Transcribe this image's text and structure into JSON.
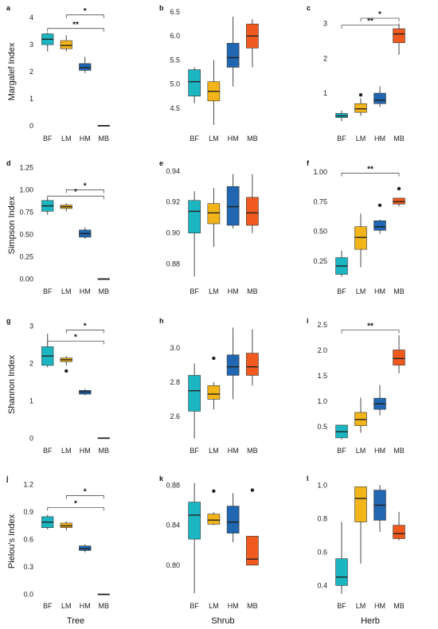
{
  "colors": {
    "BF": "#1BB6C1",
    "LM": "#F2B418",
    "HM": "#2066B0",
    "MB": "#F05A1E"
  },
  "row_labels": [
    "Margalef Index",
    "Simpson Index",
    "Shannon Index",
    "Pielou's Index"
  ],
  "col_labels": [
    "Tree",
    "Shrub",
    "Herb"
  ],
  "chart_data": [
    {
      "type": "box",
      "panel": "a",
      "row": 0,
      "col": 0,
      "categories": [
        "BF",
        "LM",
        "HM",
        "MB"
      ],
      "ylim": [
        -0.15,
        4.3
      ],
      "yticks": [
        0,
        1,
        2,
        3,
        4
      ],
      "ytick_labels": [
        "0",
        "1",
        "2",
        "3",
        "4"
      ],
      "boxes": [
        {
          "min": 2.75,
          "q1": 3.0,
          "median": 3.2,
          "q3": 3.4,
          "max": 3.45,
          "outliers": []
        },
        {
          "min": 2.75,
          "q1": 2.85,
          "median": 2.97,
          "q3": 3.15,
          "max": 3.35,
          "outliers": []
        },
        {
          "min": 1.95,
          "q1": 2.05,
          "median": 2.15,
          "q3": 2.3,
          "max": 2.55,
          "outliers": []
        },
        {
          "min": 0,
          "q1": 0,
          "median": 0,
          "q3": 0,
          "max": 0,
          "outliers": []
        }
      ],
      "sig": [
        {
          "from": 1,
          "to": 3,
          "y": 4.1,
          "label": "*"
        },
        {
          "from": 0,
          "to": 3,
          "y": 3.6,
          "label": "**"
        }
      ]
    },
    {
      "type": "box",
      "panel": "b",
      "row": 0,
      "col": 1,
      "categories": [
        "BF",
        "LM",
        "HM",
        "MB"
      ],
      "ylim": [
        4.05,
        6.55
      ],
      "yticks": [
        4.5,
        5.0,
        5.5,
        6.0,
        6.5
      ],
      "ytick_labels": [
        "4.5",
        "5.0",
        "5.5",
        "6.0",
        "6.5"
      ],
      "boxes": [
        {
          "min": 4.6,
          "q1": 4.75,
          "median": 5.05,
          "q3": 5.3,
          "max": 5.35,
          "outliers": []
        },
        {
          "min": 4.15,
          "q1": 4.65,
          "median": 4.85,
          "q3": 5.05,
          "max": 5.5,
          "outliers": []
        },
        {
          "min": 4.95,
          "q1": 5.35,
          "median": 5.55,
          "q3": 5.85,
          "max": 6.4,
          "outliers": []
        },
        {
          "min": 5.35,
          "q1": 5.75,
          "median": 6.0,
          "q3": 6.25,
          "max": 6.35,
          "outliers": []
        }
      ],
      "sig": []
    },
    {
      "type": "box",
      "panel": "c",
      "row": 0,
      "col": 2,
      "categories": [
        "BF",
        "LM",
        "HM",
        "MB"
      ],
      "ylim": [
        -0.05,
        3.4
      ],
      "yticks": [
        1,
        2,
        3
      ],
      "ytick_labels": [
        "1",
        "2",
        "3"
      ],
      "boxes": [
        {
          "min": 0.2,
          "q1": 0.3,
          "median": 0.35,
          "q3": 0.42,
          "max": 0.5,
          "outliers": []
        },
        {
          "min": 0.35,
          "q1": 0.45,
          "median": 0.55,
          "q3": 0.7,
          "max": 0.85,
          "outliers": [
            0.95
          ]
        },
        {
          "min": 0.6,
          "q1": 0.7,
          "median": 0.8,
          "q3": 1.0,
          "max": 1.2,
          "outliers": []
        },
        {
          "min": 2.1,
          "q1": 2.45,
          "median": 2.7,
          "q3": 2.85,
          "max": 3.0,
          "outliers": []
        }
      ],
      "sig": [
        {
          "from": 1,
          "to": 3,
          "y": 3.15,
          "label": "*"
        },
        {
          "from": 0,
          "to": 3,
          "y": 2.95,
          "label": "**"
        }
      ]
    },
    {
      "type": "box",
      "panel": "d",
      "row": 1,
      "col": 0,
      "categories": [
        "BF",
        "LM",
        "HM",
        "MB"
      ],
      "ylim": [
        -0.04,
        1.28
      ],
      "yticks": [
        0,
        0.25,
        0.5,
        0.75,
        1.0,
        1.25
      ],
      "ytick_labels": [
        "0.00",
        "0.25",
        "0.50",
        "0.75",
        "1.00",
        "1.25"
      ],
      "boxes": [
        {
          "min": 0.72,
          "q1": 0.76,
          "median": 0.82,
          "q3": 0.88,
          "max": 0.9,
          "outliers": []
        },
        {
          "min": 0.76,
          "q1": 0.79,
          "median": 0.81,
          "q3": 0.83,
          "max": 0.85,
          "outliers": []
        },
        {
          "min": 0.45,
          "q1": 0.47,
          "median": 0.51,
          "q3": 0.55,
          "max": 0.58,
          "outliers": []
        },
        {
          "min": 0,
          "q1": 0,
          "median": 0,
          "q3": 0,
          "max": 0,
          "outliers": []
        }
      ],
      "sig": [
        {
          "from": 1,
          "to": 3,
          "y": 1.0,
          "label": "*"
        },
        {
          "from": 0,
          "to": 3,
          "y": 0.93,
          "label": "*"
        }
      ]
    },
    {
      "type": "box",
      "panel": "e",
      "row": 1,
      "col": 1,
      "categories": [
        "BF",
        "LM",
        "HM",
        "MB"
      ],
      "ylim": [
        0.868,
        0.944
      ],
      "yticks": [
        0.88,
        0.9,
        0.92,
        0.94
      ],
      "ytick_labels": [
        "0.88",
        "0.90",
        "0.92",
        "0.94"
      ],
      "boxes": [
        {
          "min": 0.872,
          "q1": 0.9,
          "median": 0.914,
          "q3": 0.921,
          "max": 0.927,
          "outliers": []
        },
        {
          "min": 0.891,
          "q1": 0.906,
          "median": 0.913,
          "q3": 0.919,
          "max": 0.929,
          "outliers": []
        },
        {
          "min": 0.903,
          "q1": 0.905,
          "median": 0.917,
          "q3": 0.93,
          "max": 0.938,
          "outliers": []
        },
        {
          "min": 0.9,
          "q1": 0.905,
          "median": 0.913,
          "q3": 0.923,
          "max": 0.938,
          "outliers": []
        }
      ],
      "sig": []
    },
    {
      "type": "box",
      "panel": "f",
      "row": 1,
      "col": 2,
      "categories": [
        "BF",
        "LM",
        "HM",
        "MB"
      ],
      "ylim": [
        0.07,
        1.06
      ],
      "yticks": [
        0.25,
        0.5,
        0.75,
        1.0
      ],
      "ytick_labels": [
        "0.25",
        "0.50",
        "0.75",
        "1.00"
      ],
      "boxes": [
        {
          "min": 0.12,
          "q1": 0.14,
          "median": 0.21,
          "q3": 0.28,
          "max": 0.34,
          "outliers": []
        },
        {
          "min": 0.2,
          "q1": 0.35,
          "median": 0.45,
          "q3": 0.54,
          "max": 0.65,
          "outliers": []
        },
        {
          "min": 0.48,
          "q1": 0.51,
          "median": 0.54,
          "q3": 0.59,
          "max": 0.6,
          "outliers": [
            0.72
          ]
        },
        {
          "min": 0.71,
          "q1": 0.73,
          "median": 0.75,
          "q3": 0.78,
          "max": 0.78,
          "outliers": [
            0.86
          ]
        }
      ],
      "sig": [
        {
          "from": 0,
          "to": 3,
          "y": 0.99,
          "label": "**"
        }
      ]
    },
    {
      "type": "box",
      "panel": "g",
      "row": 2,
      "col": 0,
      "categories": [
        "BF",
        "LM",
        "HM",
        "MB"
      ],
      "ylim": [
        -0.1,
        3.1
      ],
      "yticks": [
        0,
        1,
        2,
        3
      ],
      "ytick_labels": [
        "0",
        "1",
        "2",
        "3"
      ],
      "boxes": [
        {
          "min": 1.9,
          "q1": 1.95,
          "median": 2.2,
          "q3": 2.45,
          "max": 2.8,
          "outliers": []
        },
        {
          "min": 1.95,
          "q1": 2.05,
          "median": 2.1,
          "q3": 2.15,
          "max": 2.2,
          "outliers": [
            1.8
          ]
        },
        {
          "min": 1.15,
          "q1": 1.18,
          "median": 1.24,
          "q3": 1.28,
          "max": 1.32,
          "outliers": []
        },
        {
          "min": 0,
          "q1": 0,
          "median": 0,
          "q3": 0,
          "max": 0,
          "outliers": []
        }
      ],
      "sig": [
        {
          "from": 1,
          "to": 3,
          "y": 2.9,
          "label": "*"
        },
        {
          "from": 0,
          "to": 3,
          "y": 2.6,
          "label": "*"
        }
      ]
    },
    {
      "type": "box",
      "panel": "h",
      "row": 2,
      "col": 1,
      "categories": [
        "BF",
        "LM",
        "HM",
        "MB"
      ],
      "ylim": [
        2.45,
        3.15
      ],
      "yticks": [
        2.6,
        2.8,
        3.0
      ],
      "ytick_labels": [
        "2.6",
        "2.8",
        "3.0"
      ],
      "boxes": [
        {
          "min": 2.47,
          "q1": 2.63,
          "median": 2.75,
          "q3": 2.84,
          "max": 2.91,
          "outliers": []
        },
        {
          "min": 2.64,
          "q1": 2.7,
          "median": 2.73,
          "q3": 2.78,
          "max": 2.8,
          "outliers": [
            2.94
          ]
        },
        {
          "min": 2.7,
          "q1": 2.84,
          "median": 2.89,
          "q3": 2.96,
          "max": 3.12,
          "outliers": []
        },
        {
          "min": 2.78,
          "q1": 2.84,
          "median": 2.89,
          "q3": 2.97,
          "max": 3.11,
          "outliers": []
        }
      ],
      "sig": []
    },
    {
      "type": "box",
      "panel": "i",
      "row": 2,
      "col": 2,
      "categories": [
        "BF",
        "LM",
        "HM",
        "MB"
      ],
      "ylim": [
        0.2,
        2.55
      ],
      "yticks": [
        0.5,
        1.0,
        1.5,
        2.0,
        2.5
      ],
      "ytick_labels": [
        "0.5",
        "1.0",
        "1.5",
        "2.0",
        "2.5"
      ],
      "boxes": [
        {
          "min": 0.25,
          "q1": 0.28,
          "median": 0.4,
          "q3": 0.53,
          "max": 0.53,
          "outliers": []
        },
        {
          "min": 0.38,
          "q1": 0.52,
          "median": 0.64,
          "q3": 0.78,
          "max": 1.07,
          "outliers": []
        },
        {
          "min": 0.72,
          "q1": 0.84,
          "median": 0.95,
          "q3": 1.06,
          "max": 1.32,
          "outliers": []
        },
        {
          "min": 1.55,
          "q1": 1.71,
          "median": 1.84,
          "q3": 2.01,
          "max": 2.3,
          "outliers": []
        }
      ],
      "sig": [
        {
          "from": 0,
          "to": 3,
          "y": 2.4,
          "label": "**"
        }
      ]
    },
    {
      "type": "box",
      "panel": "j",
      "row": 3,
      "col": 0,
      "categories": [
        "BF",
        "LM",
        "HM",
        "MB"
      ],
      "ylim": [
        -0.03,
        1.25
      ],
      "yticks": [
        0,
        0.3,
        0.6,
        0.9,
        1.2
      ],
      "ytick_labels": [
        "0.0",
        "0.3",
        "0.6",
        "0.9",
        "1.2"
      ],
      "boxes": [
        {
          "min": 0.71,
          "q1": 0.73,
          "median": 0.79,
          "q3": 0.85,
          "max": 0.87,
          "outliers": []
        },
        {
          "min": 0.7,
          "q1": 0.73,
          "median": 0.75,
          "q3": 0.78,
          "max": 0.8,
          "outliers": []
        },
        {
          "min": 0.46,
          "q1": 0.48,
          "median": 0.5,
          "q3": 0.53,
          "max": 0.55,
          "outliers": []
        },
        {
          "min": 0,
          "q1": 0,
          "median": 0,
          "q3": 0,
          "max": 0,
          "outliers": []
        }
      ],
      "sig": [
        {
          "from": 1,
          "to": 3,
          "y": 1.08,
          "label": "*"
        },
        {
          "from": 0,
          "to": 3,
          "y": 0.95,
          "label": "*"
        }
      ]
    },
    {
      "type": "box",
      "panel": "k",
      "row": 3,
      "col": 1,
      "categories": [
        "BF",
        "LM",
        "HM",
        "MB"
      ],
      "ylim": [
        0.768,
        0.885
      ],
      "yticks": [
        0.8,
        0.84,
        0.88
      ],
      "ytick_labels": [
        "0.80",
        "0.84",
        "0.88"
      ],
      "boxes": [
        {
          "min": 0.772,
          "q1": 0.826,
          "median": 0.85,
          "q3": 0.863,
          "max": 0.882,
          "outliers": []
        },
        {
          "min": 0.84,
          "q1": 0.841,
          "median": 0.845,
          "q3": 0.851,
          "max": 0.853,
          "outliers": [
            0.874
          ]
        },
        {
          "min": 0.823,
          "q1": 0.832,
          "median": 0.843,
          "q3": 0.859,
          "max": 0.872,
          "outliers": []
        },
        {
          "min": 0.8,
          "q1": 0.8,
          "median": 0.806,
          "q3": 0.829,
          "max": 0.829,
          "outliers": [
            0.875
          ]
        }
      ],
      "sig": []
    },
    {
      "type": "box",
      "panel": "l",
      "row": 3,
      "col": 2,
      "categories": [
        "BF",
        "LM",
        "HM",
        "MB"
      ],
      "ylim": [
        0.33,
        1.03
      ],
      "yticks": [
        0.4,
        0.6,
        0.8,
        1.0
      ],
      "ytick_labels": [
        "0.4",
        "0.6",
        "0.8",
        "1.0"
      ],
      "boxes": [
        {
          "min": 0.35,
          "q1": 0.4,
          "median": 0.45,
          "q3": 0.56,
          "max": 0.78,
          "outliers": []
        },
        {
          "min": 0.53,
          "q1": 0.78,
          "median": 0.92,
          "q3": 0.99,
          "max": 0.99,
          "outliers": []
        },
        {
          "min": 0.72,
          "q1": 0.79,
          "median": 0.88,
          "q3": 0.97,
          "max": 1.0,
          "outliers": []
        },
        {
          "min": 0.67,
          "q1": 0.68,
          "median": 0.71,
          "q3": 0.76,
          "max": 0.84,
          "outliers": []
        }
      ],
      "sig": []
    }
  ]
}
